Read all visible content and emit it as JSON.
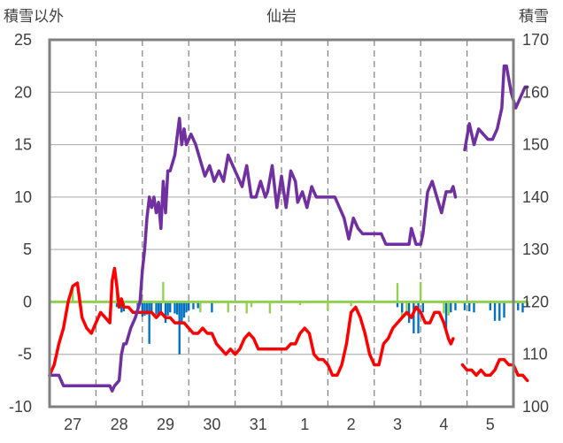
{
  "chart_data": {
    "type": "line",
    "title": "仙岩",
    "left_axis_label": "積雪以外",
    "right_axis_label": "積雪",
    "grid": true,
    "x_categories": [
      "27",
      "28",
      "29",
      "30",
      "31",
      "1",
      "2",
      "3",
      "4",
      "5"
    ],
    "y_left": {
      "min": -10,
      "max": 25,
      "ticks": [
        "25",
        "20",
        "15",
        "10",
        "5",
        "0",
        "-5",
        "-10"
      ]
    },
    "y_right": {
      "min": 100,
      "max": 170,
      "ticks": [
        "170",
        "160",
        "150",
        "140",
        "130",
        "120",
        "110",
        "100"
      ]
    },
    "colors": {
      "temperature": "#ff0000",
      "snow_depth": "#7030a0",
      "precipitation": "#0070c0",
      "snowfall": "#92d050",
      "axis": "#808080",
      "grid": "#808080",
      "text": "#404040"
    },
    "series": [
      {
        "key": "snow_depth",
        "axis": "right",
        "points": [
          [
            -0.5,
            106
          ],
          [
            -0.3,
            106
          ],
          [
            -0.2,
            104
          ],
          [
            -0.1,
            104
          ],
          [
            0.0,
            104
          ],
          [
            0.2,
            104
          ],
          [
            0.4,
            104
          ],
          [
            0.6,
            104
          ],
          [
            0.8,
            104
          ],
          [
            0.85,
            103
          ],
          [
            0.9,
            104
          ],
          [
            1.0,
            105
          ],
          [
            1.05,
            110
          ],
          [
            1.1,
            112
          ],
          [
            1.15,
            112
          ],
          [
            1.25,
            115
          ],
          [
            1.35,
            117
          ],
          [
            1.45,
            120
          ],
          [
            1.5,
            126
          ],
          [
            1.55,
            130
          ],
          [
            1.6,
            136
          ],
          [
            1.65,
            140
          ],
          [
            1.7,
            138
          ],
          [
            1.75,
            140
          ],
          [
            1.8,
            137
          ],
          [
            1.85,
            139
          ],
          [
            1.9,
            134
          ],
          [
            1.95,
            143
          ],
          [
            2.0,
            137
          ],
          [
            2.05,
            145
          ],
          [
            2.1,
            145
          ],
          [
            2.2,
            148
          ],
          [
            2.3,
            155
          ],
          [
            2.35,
            150
          ],
          [
            2.4,
            153
          ],
          [
            2.45,
            150
          ],
          [
            2.55,
            152
          ],
          [
            2.65,
            150
          ],
          [
            2.75,
            147
          ],
          [
            2.85,
            144
          ],
          [
            2.95,
            146
          ],
          [
            3.05,
            143
          ],
          [
            3.15,
            145
          ],
          [
            3.25,
            143
          ],
          [
            3.35,
            148
          ],
          [
            3.45,
            146
          ],
          [
            3.55,
            144
          ],
          [
            3.65,
            142
          ],
          [
            3.75,
            146
          ],
          [
            3.85,
            140
          ],
          [
            3.95,
            140
          ],
          [
            4.05,
            143
          ],
          [
            4.15,
            140
          ],
          [
            4.2,
            141
          ],
          [
            4.3,
            146
          ],
          [
            4.4,
            138
          ],
          [
            4.5,
            144
          ],
          [
            4.6,
            138
          ],
          [
            4.7,
            145
          ],
          [
            4.8,
            143
          ],
          [
            4.85,
            139
          ],
          [
            4.95,
            141
          ],
          [
            5.05,
            138
          ],
          [
            5.15,
            142
          ],
          [
            5.25,
            140
          ],
          [
            5.35,
            140
          ],
          [
            5.45,
            140
          ],
          [
            5.55,
            140
          ],
          [
            5.65,
            140
          ],
          [
            5.75,
            138
          ],
          [
            5.85,
            136
          ],
          [
            5.95,
            132
          ],
          [
            6.05,
            136
          ],
          [
            6.15,
            134
          ],
          [
            6.25,
            133
          ],
          [
            6.35,
            133
          ],
          [
            6.45,
            133
          ],
          [
            6.55,
            133
          ],
          [
            6.65,
            133
          ],
          [
            6.75,
            131
          ],
          [
            6.85,
            131
          ],
          [
            6.95,
            131
          ],
          [
            7.05,
            131
          ],
          [
            7.15,
            131
          ],
          [
            7.25,
            131
          ],
          [
            7.3,
            134
          ],
          [
            7.4,
            131
          ],
          [
            7.5,
            131
          ],
          [
            7.55,
            133
          ],
          [
            7.65,
            141
          ],
          [
            7.75,
            143
          ],
          [
            7.85,
            140
          ],
          [
            7.95,
            137
          ],
          [
            8.05,
            141
          ],
          [
            8.1,
            141
          ],
          [
            8.15,
            141
          ],
          [
            8.2,
            142
          ],
          [
            8.25,
            140
          ]
        ]
      },
      {
        "key": "snow_depth_late",
        "axis": "right",
        "points": [
          [
            8.45,
            149
          ],
          [
            8.55,
            154
          ],
          [
            8.65,
            150
          ],
          [
            8.75,
            153
          ],
          [
            8.85,
            152
          ],
          [
            8.95,
            151
          ],
          [
            9.05,
            151
          ],
          [
            9.15,
            153
          ],
          [
            9.25,
            157
          ],
          [
            9.3,
            165
          ],
          [
            9.35,
            165
          ],
          [
            9.45,
            160
          ],
          [
            9.55,
            157
          ],
          [
            9.65,
            159
          ],
          [
            9.75,
            161
          ],
          [
            9.8,
            161
          ]
        ]
      },
      {
        "key": "temperature",
        "axis": "left",
        "points": [
          [
            -0.5,
            -7
          ],
          [
            -0.4,
            -6
          ],
          [
            -0.3,
            -4
          ],
          [
            -0.2,
            -2.5
          ],
          [
            -0.1,
            0
          ],
          [
            0.0,
            1.5
          ],
          [
            0.1,
            1.8
          ],
          [
            0.2,
            -1.5
          ],
          [
            0.3,
            -2.5
          ],
          [
            0.4,
            -3
          ],
          [
            0.5,
            -2
          ],
          [
            0.6,
            -1
          ],
          [
            0.7,
            -1.5
          ],
          [
            0.8,
            -2
          ],
          [
            0.85,
            2
          ],
          [
            0.9,
            3.2
          ],
          [
            0.95,
            1.5
          ],
          [
            1.0,
            -0.5
          ],
          [
            1.05,
            0.3
          ],
          [
            1.1,
            -0.5
          ],
          [
            1.2,
            -0.5
          ],
          [
            1.3,
            -1
          ],
          [
            1.4,
            -1
          ],
          [
            1.5,
            -1
          ],
          [
            1.6,
            -1
          ],
          [
            1.7,
            -1
          ],
          [
            1.8,
            -1.5
          ],
          [
            1.9,
            -1
          ],
          [
            2.0,
            -1.5
          ],
          [
            2.1,
            -1.5
          ],
          [
            2.2,
            -2
          ],
          [
            2.3,
            -2
          ],
          [
            2.4,
            -2
          ],
          [
            2.5,
            -2.5
          ],
          [
            2.6,
            -3
          ],
          [
            2.7,
            -3
          ],
          [
            2.8,
            -2.5
          ],
          [
            2.9,
            -3
          ],
          [
            3.0,
            -3
          ],
          [
            3.1,
            -4
          ],
          [
            3.2,
            -4.5
          ],
          [
            3.3,
            -5
          ],
          [
            3.4,
            -4.5
          ],
          [
            3.5,
            -5
          ],
          [
            3.6,
            -4.5
          ],
          [
            3.7,
            -3.5
          ],
          [
            3.8,
            -3
          ],
          [
            3.9,
            -3.5
          ],
          [
            4.0,
            -4.5
          ],
          [
            4.1,
            -4.5
          ],
          [
            4.2,
            -4.5
          ],
          [
            4.3,
            -4.5
          ],
          [
            4.4,
            -4.5
          ],
          [
            4.5,
            -4.5
          ],
          [
            4.6,
            -4.5
          ],
          [
            4.7,
            -4
          ],
          [
            4.8,
            -4
          ],
          [
            4.9,
            -3
          ],
          [
            5.0,
            -2.5
          ],
          [
            5.1,
            -3
          ],
          [
            5.2,
            -5
          ],
          [
            5.3,
            -5.5
          ],
          [
            5.4,
            -5.5
          ],
          [
            5.5,
            -6
          ],
          [
            5.6,
            -7
          ],
          [
            5.7,
            -7
          ],
          [
            5.8,
            -6
          ],
          [
            5.9,
            -4
          ],
          [
            6.0,
            -1
          ],
          [
            6.1,
            -0.5
          ],
          [
            6.2,
            -1.5
          ],
          [
            6.3,
            -3
          ],
          [
            6.4,
            -5
          ],
          [
            6.5,
            -6
          ],
          [
            6.6,
            -6
          ],
          [
            6.7,
            -4
          ],
          [
            6.8,
            -3.5
          ],
          [
            6.9,
            -2.5
          ],
          [
            7.0,
            -2
          ],
          [
            7.1,
            -1.5
          ],
          [
            7.2,
            -1
          ],
          [
            7.3,
            -1.5
          ],
          [
            7.4,
            -0.5
          ],
          [
            7.5,
            -1
          ],
          [
            7.6,
            -2
          ],
          [
            7.7,
            -2
          ],
          [
            7.8,
            -1
          ],
          [
            7.9,
            -1
          ],
          [
            8.0,
            -2
          ],
          [
            8.1,
            -3.5
          ],
          [
            8.15,
            -4
          ],
          [
            8.2,
            -3.5
          ]
        ]
      },
      {
        "key": "temperature_late",
        "axis": "left",
        "points": [
          [
            8.4,
            -6
          ],
          [
            8.5,
            -6.5
          ],
          [
            8.6,
            -6.5
          ],
          [
            8.7,
            -7
          ],
          [
            8.8,
            -6.5
          ],
          [
            8.9,
            -7
          ],
          [
            9.0,
            -7
          ],
          [
            9.1,
            -6.5
          ],
          [
            9.2,
            -5.5
          ],
          [
            9.3,
            -5.5
          ],
          [
            9.4,
            -6
          ],
          [
            9.5,
            -6
          ],
          [
            9.6,
            -7
          ],
          [
            9.7,
            -7
          ],
          [
            9.8,
            -7.5
          ]
        ]
      },
      {
        "key": "snowfall",
        "axis": "left",
        "bars": [
          [
            0.0,
            1.2
          ],
          [
            0.95,
            1.3
          ],
          [
            1.95,
            1.9
          ],
          [
            2.05,
            -0.8
          ],
          [
            2.75,
            -1
          ],
          [
            3.35,
            -1
          ],
          [
            3.75,
            -1.1
          ],
          [
            3.85,
            -0.5
          ],
          [
            4.25,
            -1.1
          ],
          [
            4.9,
            -0.3
          ],
          [
            5.5,
            -0.8
          ],
          [
            6.0,
            -0.4
          ],
          [
            7.0,
            1.8
          ],
          [
            7.1,
            -1.5
          ],
          [
            7.2,
            -0.9
          ],
          [
            7.5,
            1.9
          ],
          [
            8.0,
            -1.1
          ],
          [
            8.1,
            -1.3
          ]
        ]
      },
      {
        "key": "precipitation",
        "axis": "left",
        "bars": [
          [
            0.95,
            -0.5
          ],
          [
            1.05,
            -1
          ],
          [
            1.1,
            -0.9
          ],
          [
            1.4,
            -1.1
          ],
          [
            1.5,
            -1.4
          ],
          [
            1.55,
            -1.3
          ],
          [
            1.6,
            -1.2
          ],
          [
            1.65,
            -4
          ],
          [
            1.7,
            -1
          ],
          [
            1.8,
            -1.2
          ],
          [
            1.85,
            -1.1
          ],
          [
            1.9,
            -1
          ],
          [
            2.0,
            -2
          ],
          [
            2.05,
            -1.3
          ],
          [
            2.1,
            -1
          ],
          [
            2.2,
            -1.1
          ],
          [
            2.25,
            -1.2
          ],
          [
            2.3,
            -5
          ],
          [
            2.35,
            -2
          ],
          [
            2.4,
            -1.5
          ],
          [
            2.45,
            -1
          ],
          [
            2.5,
            -0.8
          ],
          [
            2.6,
            -0.7
          ],
          [
            2.7,
            -0.6
          ],
          [
            3.0,
            -1
          ],
          [
            7.0,
            -0.5
          ],
          [
            7.1,
            -1
          ],
          [
            7.25,
            -2
          ],
          [
            7.35,
            -3
          ],
          [
            7.45,
            -3
          ],
          [
            7.55,
            -1
          ],
          [
            8.05,
            -2.5
          ],
          [
            8.15,
            -1
          ],
          [
            8.25,
            -0.8
          ],
          [
            8.45,
            -0.8
          ],
          [
            8.55,
            -0.9
          ],
          [
            8.65,
            -1
          ],
          [
            9.0,
            -0.8
          ],
          [
            9.1,
            -1.8
          ],
          [
            9.2,
            -1.8
          ],
          [
            9.3,
            -1.5
          ],
          [
            9.5,
            -1
          ],
          [
            9.6,
            -0.8
          ],
          [
            9.7,
            -1
          ],
          [
            9.8,
            -0.5
          ]
        ]
      },
      {
        "key": "snowfall_baseline",
        "axis": "left",
        "points": [
          [
            -0.5,
            0
          ],
          [
            9.8,
            0
          ]
        ]
      }
    ]
  }
}
